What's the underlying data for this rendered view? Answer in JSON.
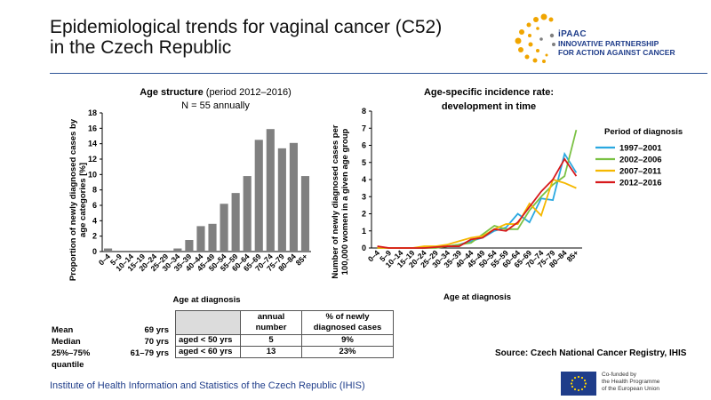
{
  "page": {
    "title": "Epidemiological trends for vaginal cancer (C52)\nin the Czech Republic",
    "logo": {
      "name": "iPAAC",
      "subtitle": "INNOVATIVE PARTNERSHIP\nFOR ACTION AGAINST CANCER"
    },
    "footer": "Institute of Health Information and Statistics of the Czech Republic (IHIS)",
    "eu_text": "Co-funded by\nthe Health Programme\nof the European Union",
    "source": "Source: Czech National Cancer Registry, IHIS",
    "colors": {
      "accent": "#2f5597",
      "bar": "#808080"
    }
  },
  "summary_stats": [
    {
      "label": "Mean",
      "value": "69 yrs"
    },
    {
      "label": "Median",
      "value": "70 yrs"
    },
    {
      "label": "25%–75% quantile",
      "value": "61–79 yrs"
    }
  ],
  "summary_table": {
    "headers": [
      "annual number",
      "% of newly diagnosed cases"
    ],
    "rows": [
      {
        "label": "aged < 50 yrs",
        "number": "5",
        "percent": "9%"
      },
      {
        "label": "aged < 60 yrs",
        "number": "13",
        "percent": "23%"
      }
    ]
  },
  "chart_data": [
    {
      "type": "bar",
      "title": "Age structure",
      "title_suffix": " (period 2012–2016)",
      "subtitle": "N = 55 annually",
      "xlabel": "Age at diagnosis",
      "ylabel": "Proportion of newly diagnosed cases by age categories [%]",
      "ylim": [
        0,
        18
      ],
      "yticks": [
        0,
        2,
        4,
        6,
        8,
        10,
        12,
        14,
        16,
        18
      ],
      "categories": [
        "0–4",
        "5–9",
        "10–14",
        "15–19",
        "20–24",
        "25–29",
        "30–34",
        "35–39",
        "40–44",
        "45–49",
        "50–54",
        "55–59",
        "60–64",
        "65–69",
        "70–74",
        "75–79",
        "80–84",
        "85+"
      ],
      "values": [
        0.4,
        0,
        0,
        0,
        0,
        0,
        0.4,
        1.5,
        3.3,
        3.6,
        6.2,
        7.6,
        9.8,
        14.5,
        15.9,
        13.4,
        14.1,
        9.8
      ],
      "color": "#808080"
    },
    {
      "type": "line",
      "title": "Age-specific incidence rate:",
      "subtitle": "development in time",
      "xlabel": "Age at diagnosis",
      "ylabel": "Number of newly diagnosed cases per 100,000 women in a given age group",
      "ylim": [
        0,
        8
      ],
      "yticks": [
        0,
        1,
        2,
        3,
        4,
        5,
        6,
        7,
        8
      ],
      "legend_title": "Period of diagnosis",
      "legend_position": "right",
      "categories": [
        "0–4",
        "5–9",
        "10–14",
        "15–19",
        "20–24",
        "25–29",
        "30–34",
        "35–39",
        "40–44",
        "45–49",
        "50–54",
        "55–59",
        "60–64",
        "65–69",
        "70–74",
        "75–79",
        "80–84",
        "85+"
      ],
      "series": [
        {
          "name": "1997–2001",
          "color": "#2aa8e0",
          "values": [
            0,
            0,
            0,
            0,
            0,
            0.05,
            0.1,
            0.2,
            0.4,
            0.6,
            1.0,
            1.2,
            2.0,
            1.5,
            2.9,
            2.8,
            5.5,
            4.4
          ]
        },
        {
          "name": "2002–2006",
          "color": "#7ac143",
          "values": [
            0.05,
            0,
            0,
            0,
            0,
            0,
            0.1,
            0.2,
            0.3,
            0.8,
            1.3,
            1.1,
            1.1,
            2.2,
            3.0,
            3.7,
            4.2,
            6.9
          ]
        },
        {
          "name": "2007–2011",
          "color": "#f5b800",
          "values": [
            0,
            0,
            0,
            0,
            0.1,
            0.1,
            0.2,
            0.4,
            0.6,
            0.7,
            1.1,
            1.4,
            1.4,
            2.6,
            1.9,
            4.0,
            3.8,
            3.5
          ]
        },
        {
          "name": "2012–2016",
          "color": "#d7191c",
          "values": [
            0.1,
            0,
            0,
            0,
            0,
            0.05,
            0.1,
            0.1,
            0.5,
            0.6,
            1.1,
            1.0,
            1.5,
            2.4,
            3.3,
            4.0,
            5.2,
            4.2
          ]
        }
      ]
    }
  ]
}
